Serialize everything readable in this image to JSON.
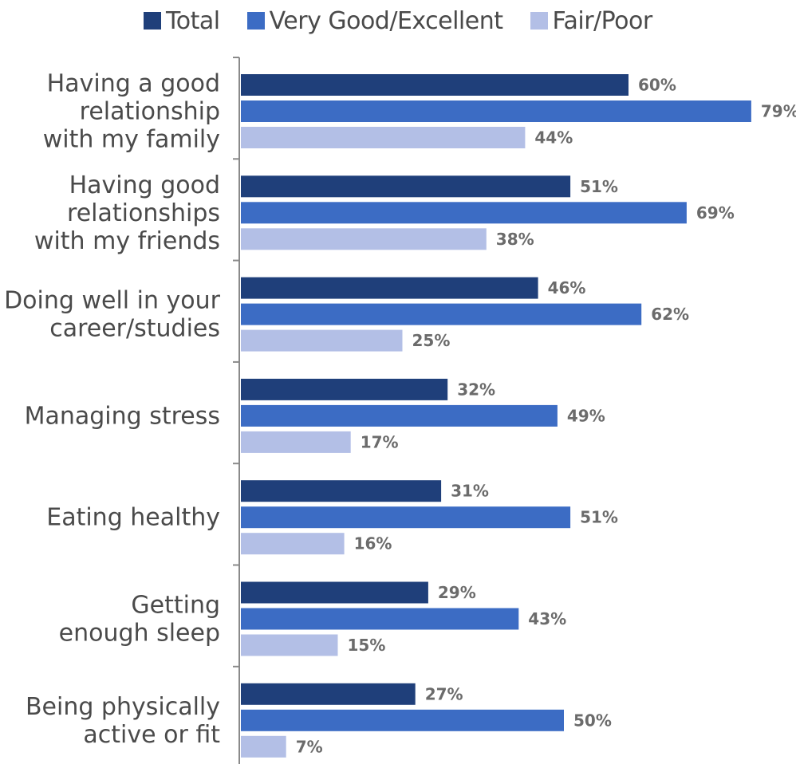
{
  "chart_data": {
    "type": "bar",
    "orientation": "horizontal",
    "categories": [
      [
        "Having a good",
        "relationship",
        "with my family"
      ],
      [
        "Having good",
        "relationships",
        "with my friends"
      ],
      [
        "Doing well in your",
        "career/studies"
      ],
      [
        "Managing stress"
      ],
      [
        "Eating healthy"
      ],
      [
        "Getting",
        "enough sleep"
      ],
      [
        "Being physically",
        "active or fit"
      ]
    ],
    "series": [
      {
        "name": "Total",
        "color": "#1f3f7a",
        "values": [
          60,
          51,
          46,
          32,
          31,
          29,
          27
        ]
      },
      {
        "name": "Very Good/Excellent",
        "color": "#3c6cc4",
        "values": [
          79,
          69,
          62,
          49,
          51,
          43,
          50
        ]
      },
      {
        "name": "Fair/Poor",
        "color": "#b3bfe6",
        "values": [
          44,
          38,
          25,
          17,
          16,
          15,
          7
        ]
      }
    ],
    "value_suffix": "%",
    "xlim": [
      0,
      80
    ],
    "legend_position": "top",
    "grid": false
  }
}
